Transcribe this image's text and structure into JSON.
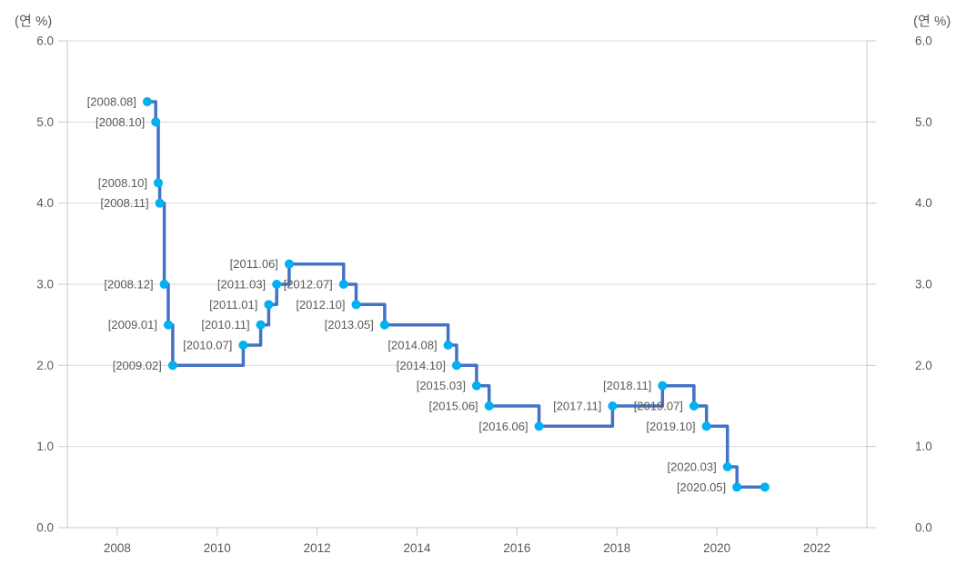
{
  "chart_data": {
    "type": "line",
    "step": "horizontal-then-vertical",
    "title": "",
    "axis_title_left": "(연 %)",
    "axis_title_right": "(연 %)",
    "xlim": [
      2007,
      2023
    ],
    "ylim": [
      0,
      6
    ],
    "grid": "horizontal",
    "legend": "none",
    "x_ticks": [
      {
        "v": 2008,
        "label": "2008"
      },
      {
        "v": 2010,
        "label": "2010"
      },
      {
        "v": 2012,
        "label": "2012"
      },
      {
        "v": 2014,
        "label": "2014"
      },
      {
        "v": 2016,
        "label": "2016"
      },
      {
        "v": 2018,
        "label": "2018"
      },
      {
        "v": 2020,
        "label": "2020"
      },
      {
        "v": 2022,
        "label": "2022"
      }
    ],
    "y_ticks": [
      {
        "v": 0,
        "label": "0.0"
      },
      {
        "v": 1,
        "label": "1.0"
      },
      {
        "v": 2,
        "label": "2.0"
      },
      {
        "v": 3,
        "label": "3.0"
      },
      {
        "v": 4,
        "label": "4.0"
      },
      {
        "v": 5,
        "label": "5.0"
      },
      {
        "v": 6,
        "label": "6.0"
      }
    ],
    "colors": {
      "line": "#4472C4",
      "marker": "#00B0F0",
      "text": "#595959",
      "grid": "#D9D9D9",
      "axis": "#C8C8C8"
    },
    "points": [
      {
        "label": "[2008.08]",
        "x": 2008.6,
        "value": 5.25
      },
      {
        "label": "[2008.10]",
        "x": 2008.77,
        "value": 5.0
      },
      {
        "label": "[2008.10]",
        "x": 2008.82,
        "value": 4.25
      },
      {
        "label": "[2008.11]",
        "x": 2008.85,
        "value": 4.0
      },
      {
        "label": "[2008.12]",
        "x": 2008.94,
        "value": 3.0
      },
      {
        "label": "[2009.01]",
        "x": 2009.02,
        "value": 2.5
      },
      {
        "label": "[2009.02]",
        "x": 2009.11,
        "value": 2.0
      },
      {
        "label": "[2010.07]",
        "x": 2010.52,
        "value": 2.25
      },
      {
        "label": "[2010.11]",
        "x": 2010.87,
        "value": 2.5
      },
      {
        "label": "[2011.01]",
        "x": 2011.03,
        "value": 2.75
      },
      {
        "label": "[2011.03]",
        "x": 2011.19,
        "value": 3.0
      },
      {
        "label": "[2011.06]",
        "x": 2011.44,
        "value": 3.25
      },
      {
        "label": "[2012.07]",
        "x": 2012.53,
        "value": 3.0
      },
      {
        "label": "[2012.10]",
        "x": 2012.78,
        "value": 2.75
      },
      {
        "label": "[2013.05]",
        "x": 2013.35,
        "value": 2.5
      },
      {
        "label": "[2014.08]",
        "x": 2014.62,
        "value": 2.25
      },
      {
        "label": "[2014.10]",
        "x": 2014.79,
        "value": 2.0
      },
      {
        "label": "[2015.03]",
        "x": 2015.19,
        "value": 1.75
      },
      {
        "label": "[2015.06]",
        "x": 2015.44,
        "value": 1.5
      },
      {
        "label": "[2016.06]",
        "x": 2016.44,
        "value": 1.25
      },
      {
        "label": "[2017.11]",
        "x": 2017.91,
        "value": 1.5
      },
      {
        "label": "[2018.11]",
        "x": 2018.91,
        "value": 1.75
      },
      {
        "label": "[2019.07]",
        "x": 2019.54,
        "value": 1.5
      },
      {
        "label": "[2019.10]",
        "x": 2019.79,
        "value": 1.25
      },
      {
        "label": "[2020.03]",
        "x": 2020.21,
        "value": 0.75
      },
      {
        "label": "[2020.05]",
        "x": 2020.4,
        "value": 0.5
      },
      {
        "label": "",
        "x": 2020.96,
        "value": 0.5
      }
    ]
  }
}
